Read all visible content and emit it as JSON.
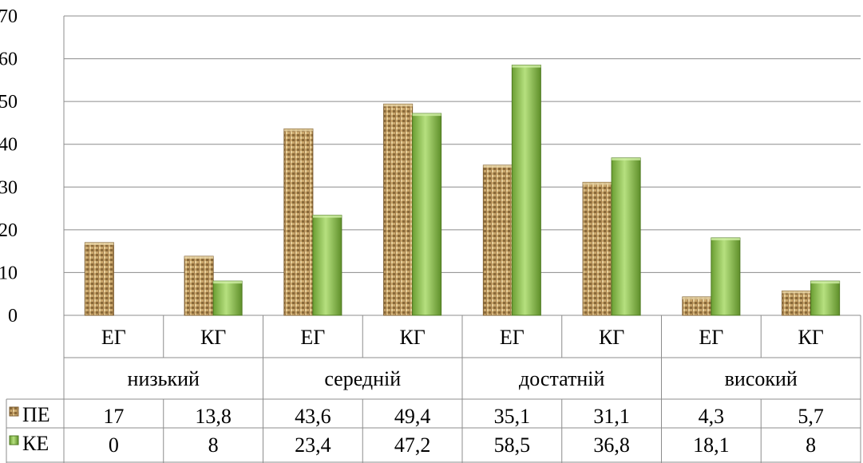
{
  "chart_data": {
    "type": "bar",
    "title": "",
    "xlabel": "",
    "ylabel": "",
    "ylim": [
      0,
      70
    ],
    "yticks": [
      0,
      10,
      20,
      30,
      40,
      50,
      60,
      70
    ],
    "grid": true,
    "legend_placement": "data-table-left",
    "groups": [
      "низький",
      "середній",
      "достатній",
      "високий"
    ],
    "categories": [
      "ЕГ",
      "КГ",
      "ЕГ",
      "КГ",
      "ЕГ",
      "КГ",
      "ЕГ",
      "КГ"
    ],
    "series": [
      {
        "name": "ПЕ",
        "values": [
          17,
          13.8,
          43.6,
          49.4,
          35.1,
          31.1,
          4.3,
          5.7
        ],
        "labels": [
          "17",
          "13,8",
          "43,6",
          "49,4",
          "35,1",
          "31,1",
          "4,3",
          "5,7"
        ],
        "color": "#c9a66b"
      },
      {
        "name": "КЕ",
        "values": [
          0,
          8,
          23.4,
          47.2,
          58.5,
          36.8,
          18.1,
          8
        ],
        "labels": [
          "0",
          "8",
          "23,4",
          "47,2",
          "58,5",
          "36,8",
          "18,1",
          "8"
        ],
        "color": "#8fc552"
      }
    ]
  }
}
